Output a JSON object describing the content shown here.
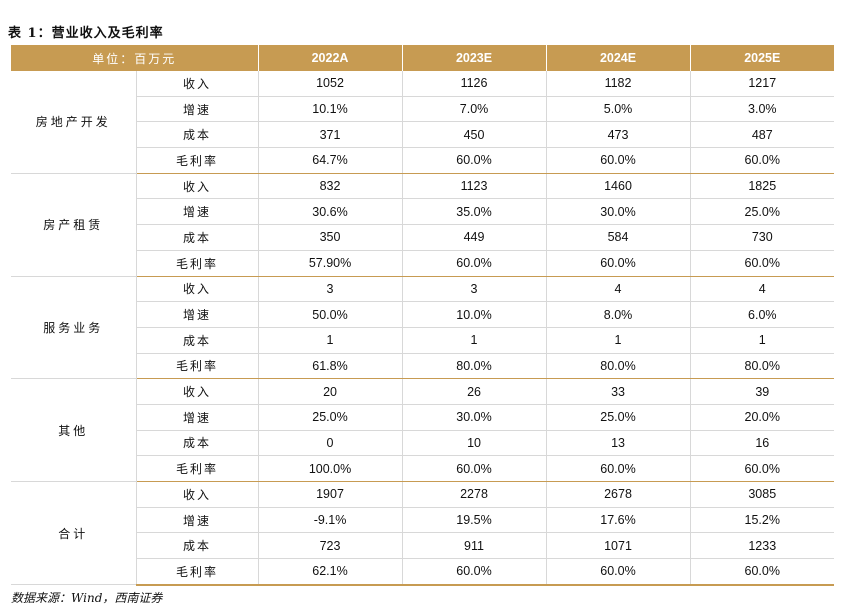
{
  "title": "表 1：营业收入及毛利率",
  "header": {
    "unit_label": "单位：百万元",
    "years": [
      "2022A",
      "2023E",
      "2024E",
      "2025E"
    ]
  },
  "groups": [
    {
      "name": "房地产开发",
      "rows": [
        {
          "metric": "收入",
          "values": [
            "1052",
            "1126",
            "1182",
            "1217"
          ]
        },
        {
          "metric": "增速",
          "values": [
            "10.1%",
            "7.0%",
            "5.0%",
            "3.0%"
          ]
        },
        {
          "metric": "成本",
          "values": [
            "371",
            "450",
            "473",
            "487"
          ]
        },
        {
          "metric": "毛利率",
          "values": [
            "64.7%",
            "60.0%",
            "60.0%",
            "60.0%"
          ]
        }
      ]
    },
    {
      "name": "房产租赁",
      "rows": [
        {
          "metric": "收入",
          "values": [
            "832",
            "1123",
            "1460",
            "1825"
          ]
        },
        {
          "metric": "增速",
          "values": [
            "30.6%",
            "35.0%",
            "30.0%",
            "25.0%"
          ]
        },
        {
          "metric": "成本",
          "values": [
            "350",
            "449",
            "584",
            "730"
          ]
        },
        {
          "metric": "毛利率",
          "values": [
            "57.90%",
            "60.0%",
            "60.0%",
            "60.0%"
          ]
        }
      ]
    },
    {
      "name": "服务业务",
      "rows": [
        {
          "metric": "收入",
          "values": [
            "3",
            "3",
            "4",
            "4"
          ]
        },
        {
          "metric": "增速",
          "values": [
            "50.0%",
            "10.0%",
            "8.0%",
            "6.0%"
          ]
        },
        {
          "metric": "成本",
          "values": [
            "1",
            "1",
            "1",
            "1"
          ]
        },
        {
          "metric": "毛利率",
          "values": [
            "61.8%",
            "80.0%",
            "80.0%",
            "80.0%"
          ]
        }
      ]
    },
    {
      "name": "其他",
      "rows": [
        {
          "metric": "收入",
          "values": [
            "20",
            "26",
            "33",
            "39"
          ]
        },
        {
          "metric": "增速",
          "values": [
            "25.0%",
            "30.0%",
            "25.0%",
            "20.0%"
          ]
        },
        {
          "metric": "成本",
          "values": [
            "0",
            "10",
            "13",
            "16"
          ]
        },
        {
          "metric": "毛利率",
          "values": [
            "100.0%",
            "60.0%",
            "60.0%",
            "60.0%"
          ]
        }
      ]
    },
    {
      "name": "合计",
      "rows": [
        {
          "metric": "收入",
          "values": [
            "1907",
            "2278",
            "2678",
            "3085"
          ]
        },
        {
          "metric": "增速",
          "values": [
            "-9.1%",
            "19.5%",
            "17.6%",
            "15.2%"
          ]
        },
        {
          "metric": "成本",
          "values": [
            "723",
            "911",
            "1071",
            "1233"
          ]
        },
        {
          "metric": "毛利率",
          "values": [
            "62.1%",
            "60.0%",
            "60.0%",
            "60.0%"
          ]
        }
      ]
    }
  ],
  "source": "数据来源：Wind，西南证券",
  "colors": {
    "header_bg": "#c79b52",
    "header_text": "#ffffff",
    "grid": "#d8d8d8"
  }
}
